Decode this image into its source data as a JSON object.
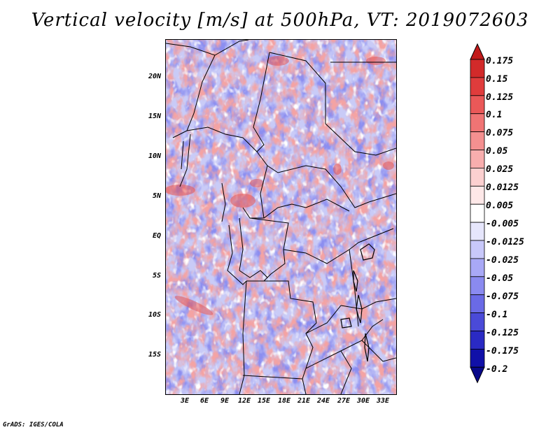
{
  "title": "Vertical velocity [m/s] at 500hPa, VT: 2019072603",
  "credit": "GrADS: IGES/COLA",
  "lat_labels": [
    "20N",
    "15N",
    "10N",
    "5N",
    "EQ",
    "5S",
    "10S",
    "15S"
  ],
  "lon_labels": [
    "3E",
    "6E",
    "9E",
    "12E",
    "15E",
    "18E",
    "21E",
    "24E",
    "27E",
    "30E",
    "33E"
  ],
  "colorbar": {
    "levels": [
      "0.175",
      "0.15",
      "0.125",
      "0.1",
      "0.075",
      "0.05",
      "0.025",
      "0.0125",
      "0.005",
      "-0.005",
      "-0.0125",
      "-0.025",
      "-0.05",
      "-0.075",
      "-0.1",
      "-0.125",
      "-0.175",
      "-0.2"
    ],
    "colors": [
      "#c21a1a",
      "#d22a2a",
      "#e03c3c",
      "#ea5858",
      "#f07474",
      "#f49090",
      "#f8aeae",
      "#fcd0d0",
      "#fee8e8",
      "#ffffff",
      "#e6e6fc",
      "#c8c8fa",
      "#a8a8f6",
      "#8a8af0",
      "#6a6ae6",
      "#4a4ad8",
      "#2a2ac4",
      "#1010a8",
      "#08088a"
    ]
  },
  "field_colors": {
    "background": "#eef0ff",
    "neg_light": "#c4c6f6",
    "neg_mid": "#9a9cf0",
    "pos_light": "#fbd4d4",
    "pos_mid": "#f3a0a0",
    "pos_strong": "#d83a3a",
    "neutral": "#ffffff",
    "border": "#000000"
  }
}
